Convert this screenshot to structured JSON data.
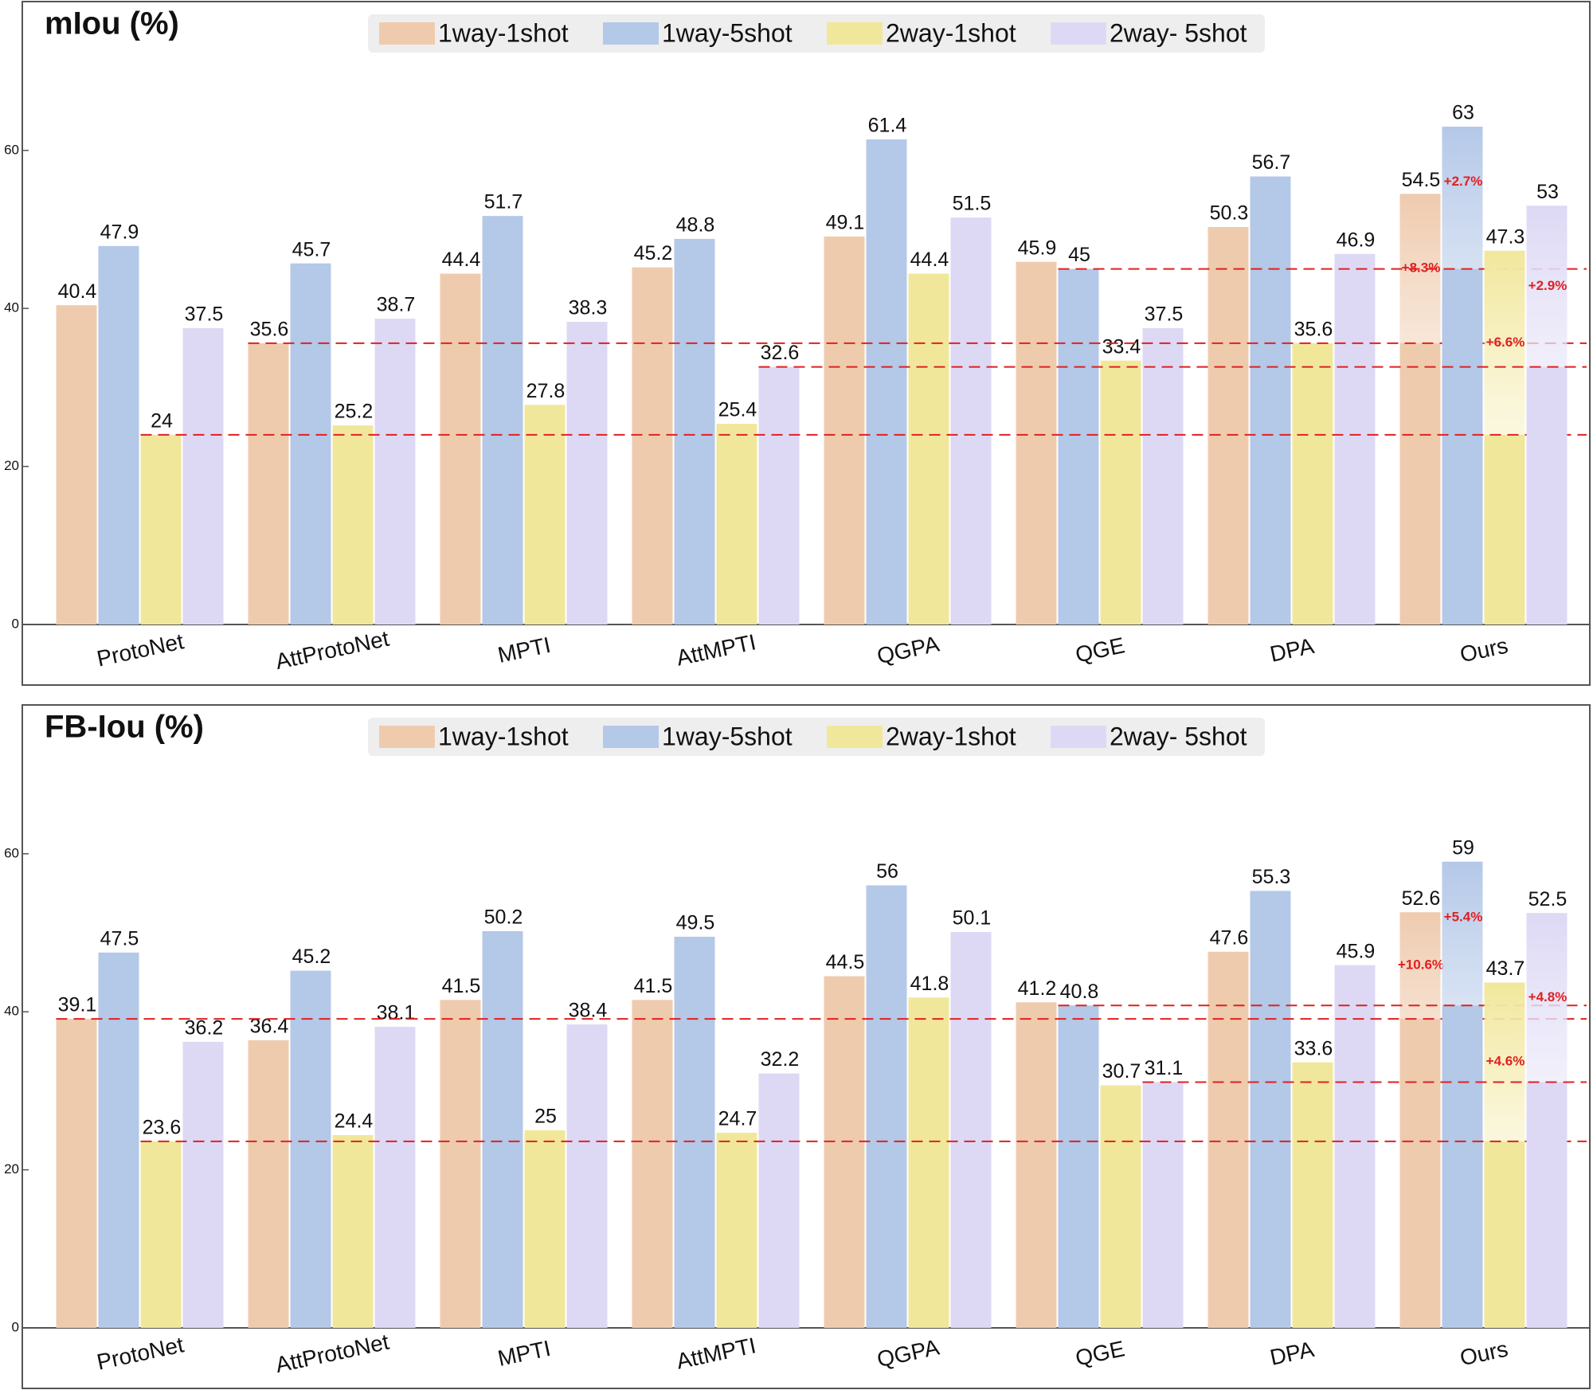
{
  "chart_data": [
    {
      "type": "bar",
      "title": "mIou (%)",
      "categories": [
        "ProtoNet",
        "AttProtoNet",
        "MPTI",
        "AttMPTI",
        "QGPA",
        "QGE",
        "DPA",
        "Ours"
      ],
      "series": [
        {
          "name": "1way-1shot",
          "color": "#efcbae",
          "values": [
            40.4,
            35.6,
            44.4,
            45.2,
            49.1,
            45.9,
            50.3,
            54.5
          ],
          "gain": "+8.3%"
        },
        {
          "name": "1way-5shot",
          "color": "#b4c8e8",
          "values": [
            47.9,
            45.7,
            51.7,
            48.8,
            61.4,
            45.0,
            56.7,
            63.0
          ],
          "gain": "+2.7%"
        },
        {
          "name": "2way-1shot",
          "color": "#f1e79b",
          "values": [
            24.0,
            25.2,
            27.8,
            25.4,
            44.4,
            33.4,
            35.6,
            47.3
          ],
          "gain": "+6.6%"
        },
        {
          "name": "2way- 5shot",
          "color": "#ddd9f5",
          "values": [
            37.5,
            38.7,
            38.3,
            32.6,
            51.5,
            37.5,
            46.9,
            53.0
          ],
          "gain": "+2.9%"
        }
      ],
      "ylim": [
        0,
        75
      ],
      "yticks": [
        0,
        20,
        40,
        60
      ]
    },
    {
      "type": "bar",
      "title": "FB-Iou (%)",
      "categories": [
        "ProtoNet",
        "AttProtoNet",
        "MPTI",
        "AttMPTI",
        "QGPA",
        "QGE",
        "DPA",
        "Ours"
      ],
      "series": [
        {
          "name": "1way-1shot",
          "color": "#efcbae",
          "values": [
            39.1,
            36.4,
            41.5,
            41.5,
            44.5,
            41.2,
            47.6,
            52.6
          ],
          "gain": "+10.6%"
        },
        {
          "name": "1way-5shot",
          "color": "#b4c8e8",
          "values": [
            47.5,
            45.2,
            50.2,
            49.5,
            56.0,
            40.8,
            55.3,
            59.0
          ],
          "gain": "+5.4%"
        },
        {
          "name": "2way-1shot",
          "color": "#f1e79b",
          "values": [
            23.6,
            24.4,
            25.0,
            24.7,
            41.8,
            30.7,
            33.6,
            43.7
          ],
          "gain": "+4.6%"
        },
        {
          "name": "2way- 5shot",
          "color": "#ddd9f5",
          "values": [
            36.2,
            38.1,
            38.4,
            32.2,
            50.1,
            31.1,
            45.9,
            52.5
          ],
          "gain": "+4.8%"
        }
      ],
      "ylim": [
        0,
        75
      ],
      "yticks": [
        0,
        20,
        40,
        60
      ]
    }
  ]
}
